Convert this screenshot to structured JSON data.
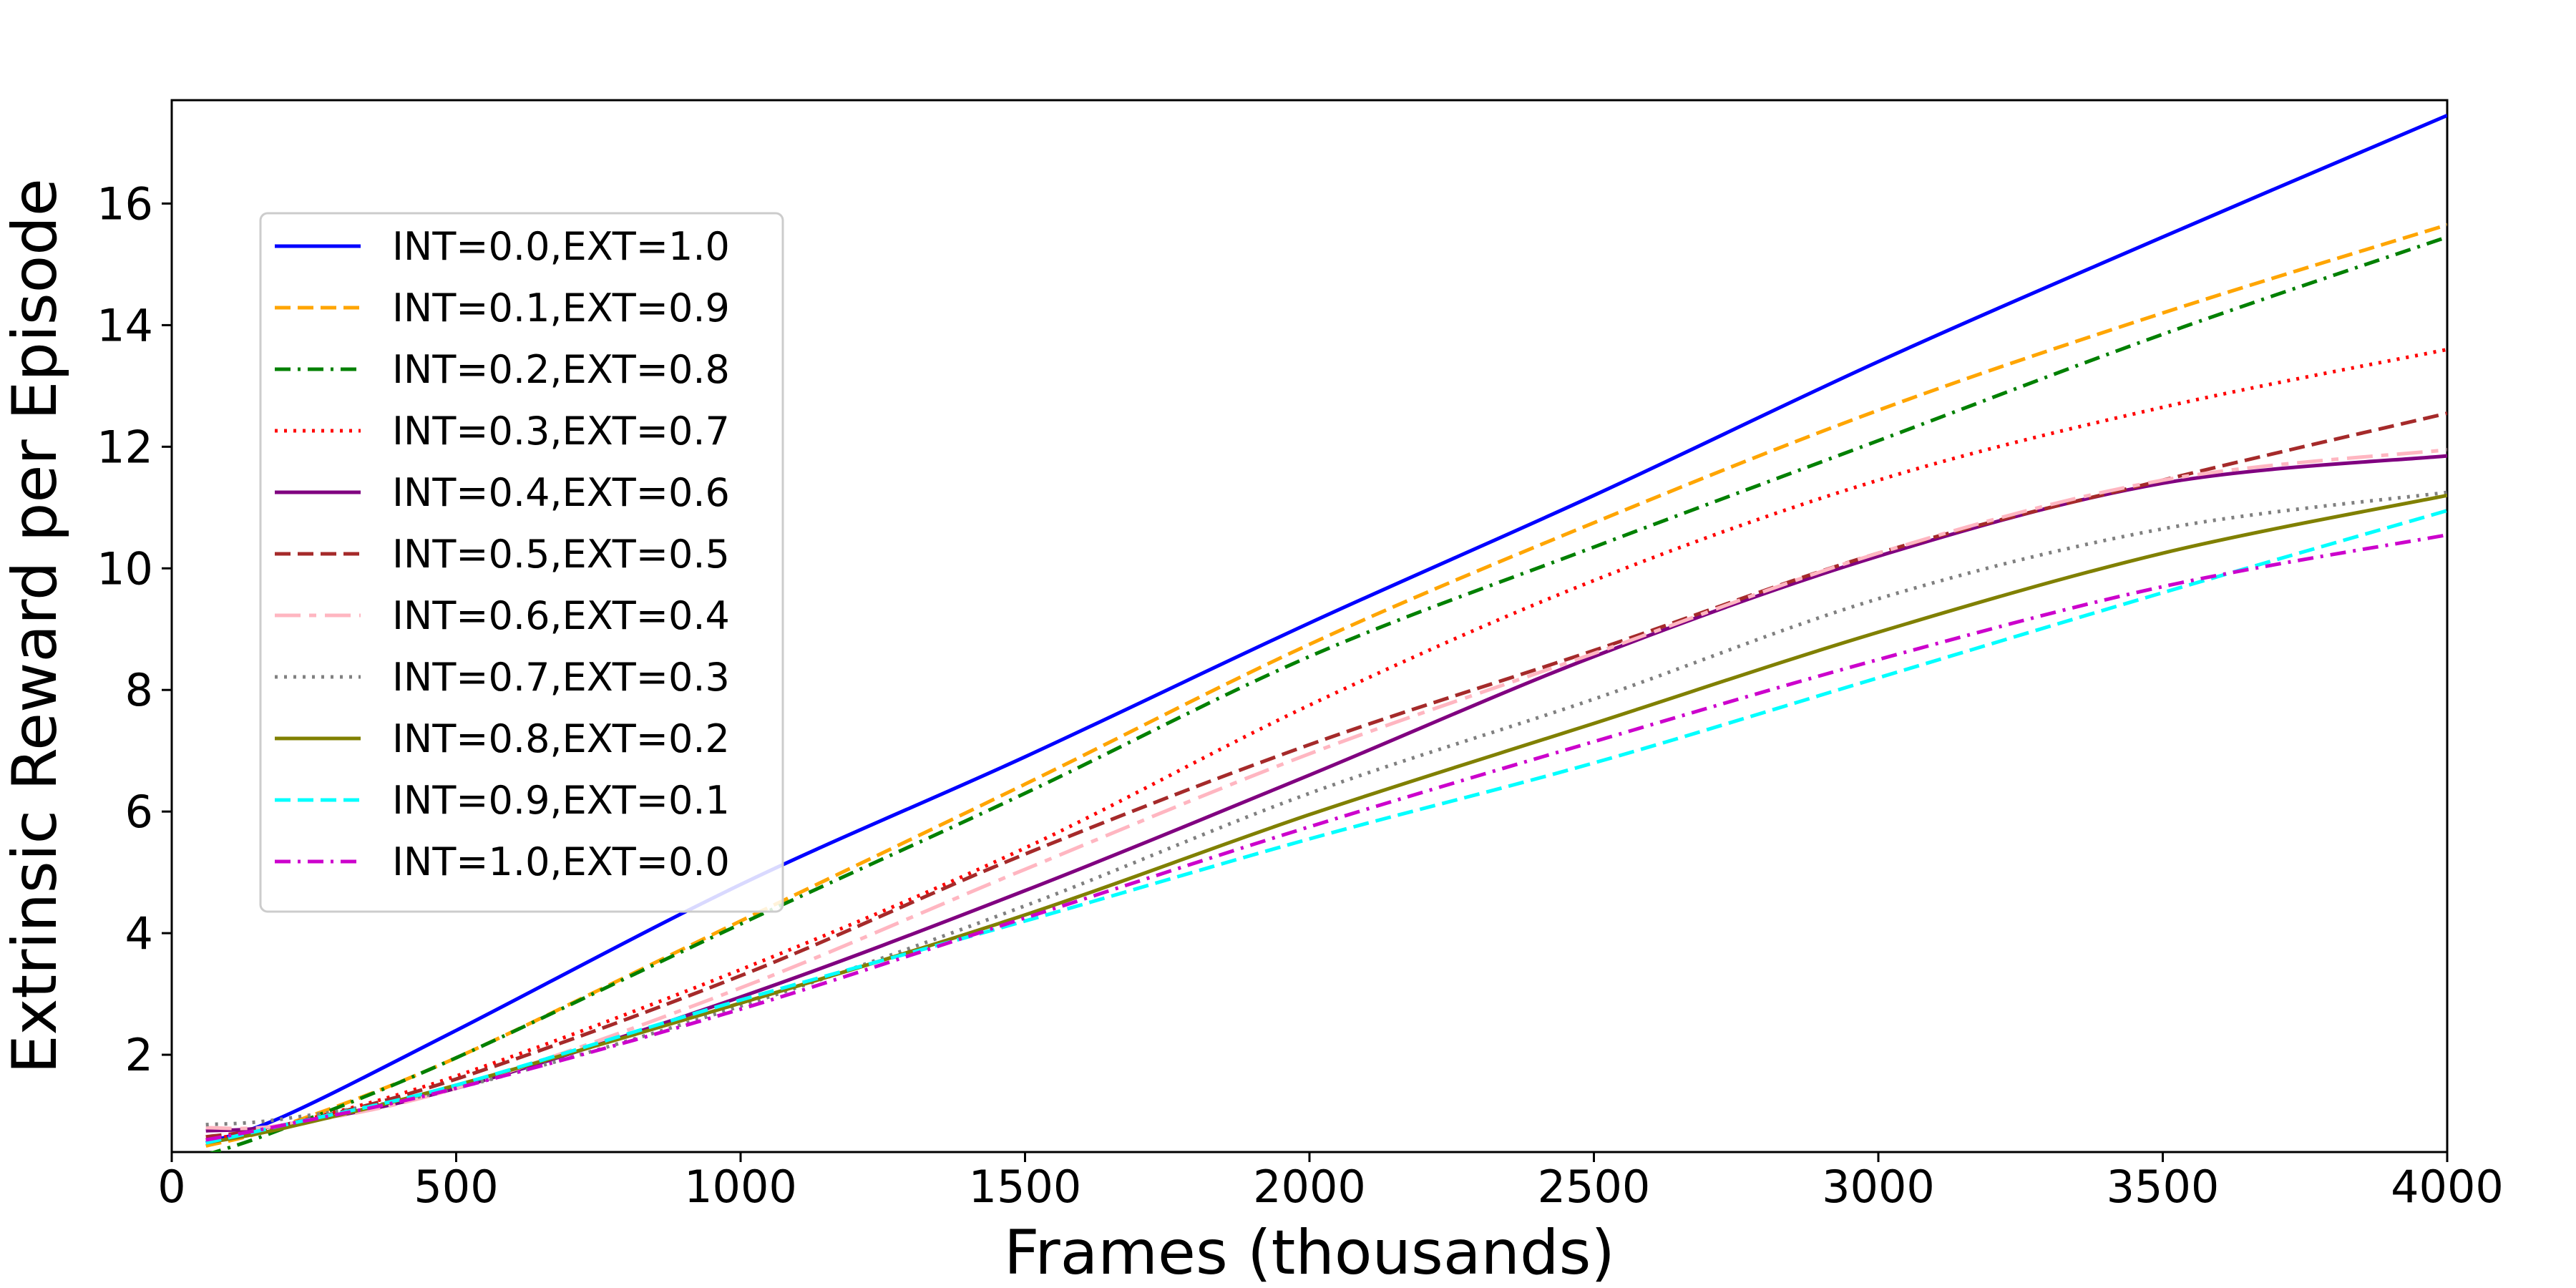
{
  "chart_data": {
    "type": "line",
    "title": "",
    "xlabel": "Frames (thousands)",
    "ylabel": "Extrinsic Reward per Episode",
    "xlim": [
      0,
      4000
    ],
    "ylim": [
      0.4,
      17.7
    ],
    "xticks": [
      "0",
      "500",
      "1000",
      "1500",
      "2000",
      "2500",
      "3000",
      "3500",
      "4000"
    ],
    "yticks": [
      "2",
      "4",
      "6",
      "8",
      "10",
      "12",
      "14",
      "16"
    ],
    "grid": false,
    "legend_position": "upper-left",
    "x": [
      60,
      200,
      500,
      1000,
      1500,
      2000,
      2500,
      3000,
      3500,
      4000
    ],
    "series": [
      {
        "name": "INT=0.0,EXT=1.0",
        "color": "#0000ff",
        "dash": "solid",
        "values": [
          0.55,
          1.0,
          2.4,
          4.8,
          6.9,
          9.1,
          11.2,
          13.4,
          15.45,
          17.45
        ]
      },
      {
        "name": "INT=0.1,EXT=0.9",
        "color": "#ffa500",
        "dash": "dashed",
        "values": [
          0.5,
          0.85,
          1.95,
          4.2,
          6.45,
          8.75,
          10.75,
          12.6,
          14.2,
          15.65
        ]
      },
      {
        "name": "INT=0.2,EXT=0.8",
        "color": "#008000",
        "dash": "dashdot",
        "values": [
          0.35,
          0.8,
          1.95,
          4.15,
          6.3,
          8.55,
          10.35,
          12.1,
          13.85,
          15.45
        ]
      },
      {
        "name": "INT=0.3,EXT=0.7",
        "color": "#ff0000",
        "dash": "dotted",
        "values": [
          0.6,
          0.85,
          1.65,
          3.4,
          5.4,
          7.75,
          9.8,
          11.45,
          12.65,
          13.6
        ]
      },
      {
        "name": "INT=0.4,EXT=0.6",
        "color": "#800080",
        "dash": "solid",
        "values": [
          0.75,
          0.85,
          1.45,
          2.95,
          4.7,
          6.6,
          8.55,
          10.2,
          11.4,
          11.85
        ]
      },
      {
        "name": "INT=0.5,EXT=0.5",
        "color": "#a52a2a",
        "dash": "dashed",
        "values": [
          0.65,
          0.85,
          1.6,
          3.3,
          5.3,
          7.1,
          8.65,
          10.25,
          11.45,
          12.55
        ]
      },
      {
        "name": "INT=0.6,EXT=0.4",
        "color": "#ffb6c1",
        "dash": "longdash",
        "values": [
          0.8,
          0.85,
          1.45,
          3.1,
          5.05,
          6.95,
          8.6,
          10.25,
          11.45,
          11.95
        ]
      },
      {
        "name": "INT=0.7,EXT=0.3",
        "color": "#808080",
        "dash": "dotted",
        "values": [
          0.85,
          0.95,
          1.45,
          2.8,
          4.45,
          6.3,
          7.85,
          9.5,
          10.65,
          11.25
        ]
      },
      {
        "name": "INT=0.8,EXT=0.2",
        "color": "#808000",
        "dash": "solid",
        "values": [
          0.55,
          0.8,
          1.5,
          2.85,
          4.3,
          5.95,
          7.45,
          8.95,
          10.25,
          11.2
        ]
      },
      {
        "name": "INT=0.9,EXT=0.1",
        "color": "#00ffff",
        "dash": "dashed",
        "values": [
          0.55,
          0.85,
          1.5,
          2.9,
          4.2,
          5.55,
          6.8,
          8.2,
          9.6,
          10.95
        ]
      },
      {
        "name": "INT=1.0,EXT=0.0",
        "color": "#cc00cc",
        "dash": "dashdot",
        "values": [
          0.6,
          0.85,
          1.45,
          2.75,
          4.25,
          5.75,
          7.15,
          8.5,
          9.7,
          10.55
        ]
      }
    ]
  }
}
